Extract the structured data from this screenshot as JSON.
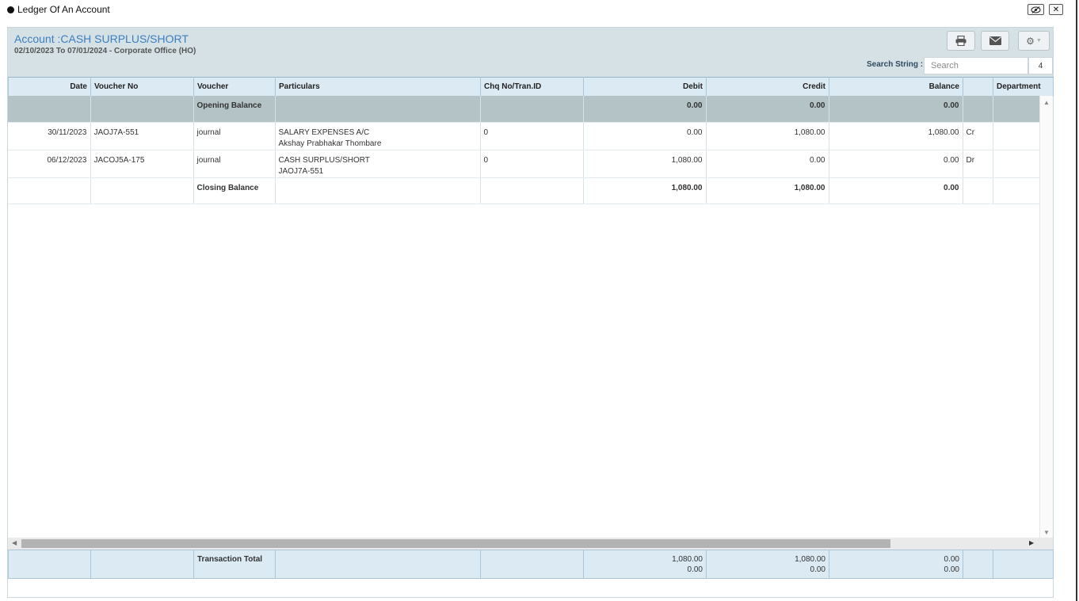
{
  "window": {
    "title": "Ledger Of An Account",
    "eye_icon": "eye-slash-icon",
    "close_icon": "close-icon"
  },
  "header": {
    "account_title": "Account :CASH SURPLUS/SHORT",
    "subtitle": "02/10/2023 To 07/01/2024 - Corporate Office (HO)",
    "search_label": "Search String :",
    "search_placeholder": "Search",
    "search_value": "",
    "search_count": "4",
    "buttons": [
      "print-icon",
      "envelope-icon",
      "gear-icon"
    ]
  },
  "table": {
    "columns": [
      "Date",
      "Voucher No",
      "Voucher",
      "Particulars",
      "Chq No/Tran.ID",
      "Debit",
      "Credit",
      "Balance",
      "",
      "Department"
    ],
    "opening": {
      "label": "Opening Balance",
      "debit": "0.00",
      "credit": "0.00",
      "balance": "0.00"
    },
    "rows": [
      {
        "date": "30/11/2023",
        "voucher_no": "JAOJ7A-551",
        "voucher": "journal",
        "particulars_1": "SALARY EXPENSES A/C",
        "particulars_2": "Akshay Prabhakar Thombare",
        "chq": "0",
        "debit": "0.00",
        "credit": "1,080.00",
        "balance": "1,080.00",
        "crdr": "Cr",
        "department": ""
      },
      {
        "date": "06/12/2023",
        "voucher_no": "JACOJ5A-175",
        "voucher": "journal",
        "particulars_1": "CASH SURPLUS/SHORT",
        "particulars_2": "JAOJ7A-551",
        "chq": "0",
        "debit": "1,080.00",
        "credit": "0.00",
        "balance": "0.00",
        "crdr": "Dr",
        "department": ""
      }
    ],
    "closing": {
      "label": "Closing Balance",
      "debit": "1,080.00",
      "credit": "1,080.00",
      "balance": "0.00"
    },
    "footer": {
      "label": "Transaction Total",
      "debit_1": "1,080.00",
      "debit_2": "0.00",
      "credit_1": "1,080.00",
      "credit_2": "0.00",
      "balance_1": "0.00",
      "balance_2": "0.00"
    }
  },
  "colors": {
    "header_bg": "#d6e1e6",
    "accent": "#3a7fbf",
    "negative": "#a33a3a",
    "opening_row": "#b3c3c6"
  }
}
